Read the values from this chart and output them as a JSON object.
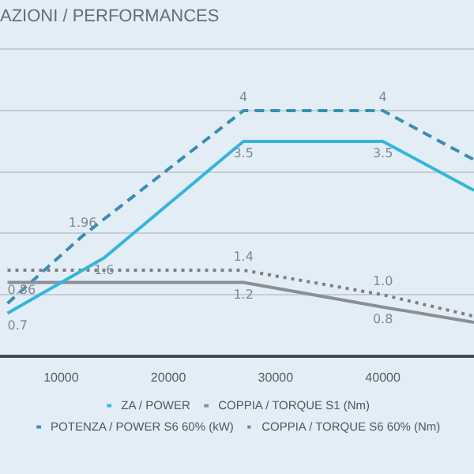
{
  "chart_data": {
    "type": "line",
    "subtitle": "AZIONI / PERFORMANCES",
    "xlim": [
      4300,
      48500
    ],
    "xticks": [
      10000,
      20000,
      30000,
      40000
    ],
    "ylim": [
      0,
      5
    ],
    "yticks": [
      {
        "value": 1,
        "label": null
      },
      {
        "value": 2,
        "label": null
      },
      {
        "value": 3,
        "label": null
      },
      {
        "value": 4,
        "label": null
      },
      {
        "value": 5,
        "label": null
      }
    ],
    "tick_labels": "x",
    "grid": "y",
    "legend": "bottom",
    "marker": "none",
    "series": [
      {
        "name": "ZA / POWER",
        "color": "#35b5dc",
        "line_style": "solid",
        "x": [
          5000,
          14000,
          27000,
          40000,
          48500
        ],
        "values": [
          0.7,
          1.6,
          3.5,
          3.5,
          2.7
        ],
        "value_labels": [
          "0.7",
          "1.6",
          "3.5",
          "3.5",
          null
        ]
      },
      {
        "name": "COPPIA / TORQUE S1 (Nm)",
        "color": "#8a8f94",
        "line_style": "solid",
        "x": [
          5000,
          27000,
          40000,
          48500
        ],
        "values": [
          1.2,
          1.2,
          0.8,
          0.55
        ],
        "value_labels": [
          null,
          "1.2",
          "0.8",
          null
        ]
      },
      {
        "name": "POTENZA / POWER S6 60% (kW)",
        "color": "#3a8db5",
        "line_style": "dashed",
        "x": [
          5000,
          12000,
          27000,
          40000,
          48500
        ],
        "values": [
          0.86,
          1.96,
          4,
          4,
          3.2
        ],
        "value_labels": [
          "0.86",
          "1.96",
          "4",
          "4",
          null
        ]
      },
      {
        "name": "COPPIA / TORQUE S6 60% (Nm)",
        "color": "#7c8086",
        "line_style": "dotted",
        "x": [
          5000,
          27000,
          40000,
          48500
        ],
        "values": [
          1.4,
          1.4,
          1.0,
          0.65
        ],
        "value_labels": [
          null,
          "1.4",
          "1.0",
          null
        ]
      }
    ]
  }
}
